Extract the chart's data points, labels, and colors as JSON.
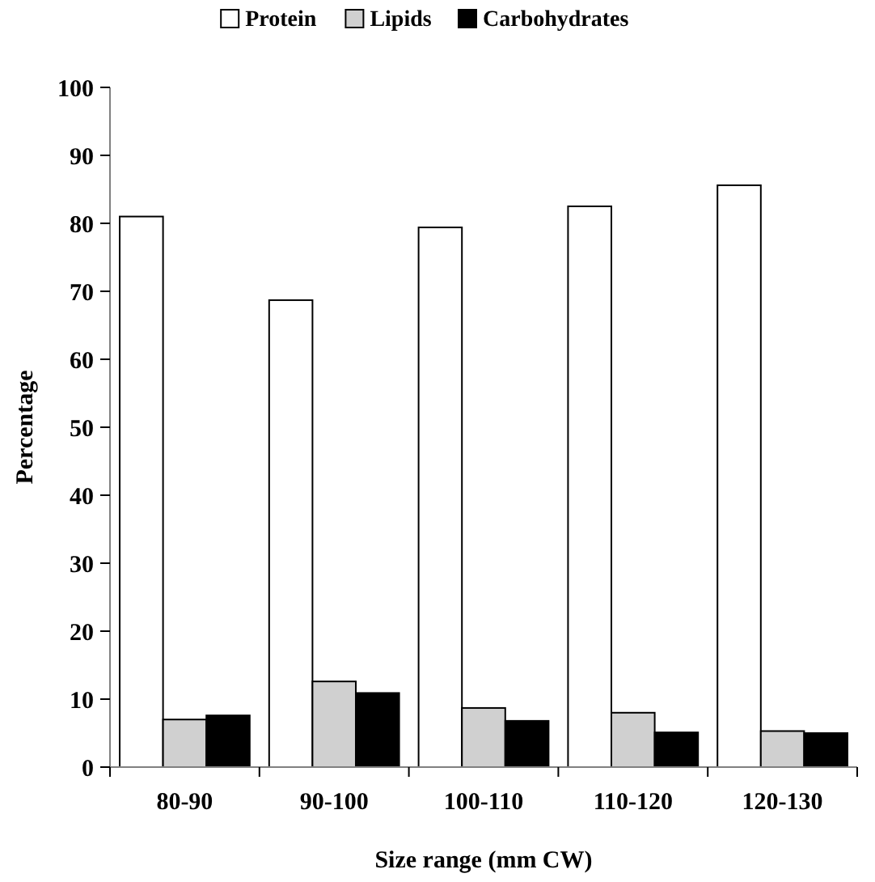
{
  "chart_data": {
    "type": "bar",
    "xlabel": "Size range (mm CW)",
    "ylabel": "Percentage",
    "categories": [
      "80-90",
      "90-100",
      "100-110",
      "110-120",
      "120-130"
    ],
    "series": [
      {
        "name": "Protein",
        "color": "#ffffff",
        "values": [
          81,
          68.7,
          79.4,
          82.5,
          85.6
        ]
      },
      {
        "name": "Lipids",
        "color": "#d0d0d0",
        "values": [
          7,
          12.6,
          8.7,
          8,
          5.3
        ]
      },
      {
        "name": "Carbohydrates",
        "color": "#000000",
        "values": [
          7.6,
          10.9,
          6.8,
          5.1,
          5
        ]
      }
    ],
    "ylim": [
      0,
      100
    ],
    "yticks": [
      0,
      10,
      20,
      30,
      40,
      50,
      60,
      70,
      80,
      90,
      100
    ],
    "grid": false,
    "legend": "top"
  }
}
